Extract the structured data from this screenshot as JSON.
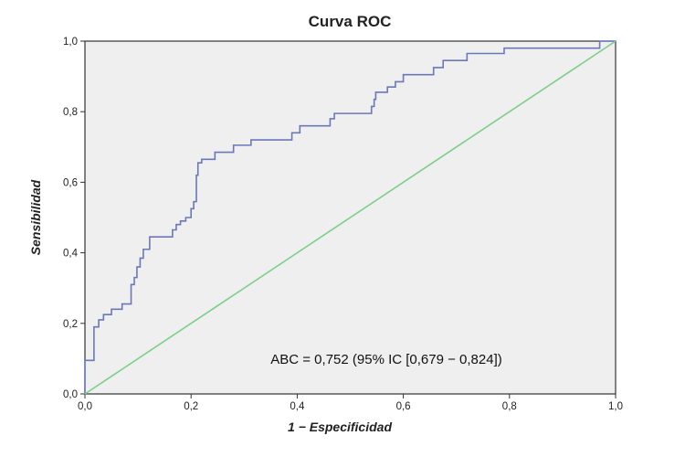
{
  "chart_data": {
    "type": "line",
    "title": "Curva ROC",
    "xlabel": "1 − Especificidad",
    "ylabel": "Sensibilidad",
    "xlim": [
      0,
      1
    ],
    "ylim": [
      0,
      1
    ],
    "x_ticks": [
      "0,0",
      "0,2",
      "0,4",
      "0,6",
      "0,8",
      "1,0"
    ],
    "y_ticks": [
      "0,0",
      "0,2",
      "0,4",
      "0,6",
      "0,8",
      "1,0"
    ],
    "annotation": "ABC = 0,752 (95% IC [0,679 − 0,824])",
    "grid": false,
    "plot_background": "#efefef",
    "series": [
      {
        "color": "#6b78b8",
        "points": [
          [
            0.0,
            0.0
          ],
          [
            0.0,
            0.095
          ],
          [
            0.017,
            0.095
          ],
          [
            0.017,
            0.19
          ],
          [
            0.026,
            0.19
          ],
          [
            0.026,
            0.21
          ],
          [
            0.035,
            0.21
          ],
          [
            0.035,
            0.225
          ],
          [
            0.05,
            0.225
          ],
          [
            0.05,
            0.24
          ],
          [
            0.07,
            0.24
          ],
          [
            0.07,
            0.255
          ],
          [
            0.087,
            0.255
          ],
          [
            0.087,
            0.31
          ],
          [
            0.093,
            0.31
          ],
          [
            0.093,
            0.33
          ],
          [
            0.098,
            0.33
          ],
          [
            0.098,
            0.36
          ],
          [
            0.104,
            0.36
          ],
          [
            0.104,
            0.385
          ],
          [
            0.11,
            0.385
          ],
          [
            0.11,
            0.41
          ],
          [
            0.122,
            0.41
          ],
          [
            0.122,
            0.445
          ],
          [
            0.165,
            0.445
          ],
          [
            0.165,
            0.465
          ],
          [
            0.172,
            0.465
          ],
          [
            0.172,
            0.48
          ],
          [
            0.18,
            0.48
          ],
          [
            0.18,
            0.49
          ],
          [
            0.19,
            0.49
          ],
          [
            0.19,
            0.5
          ],
          [
            0.2,
            0.5
          ],
          [
            0.2,
            0.525
          ],
          [
            0.205,
            0.525
          ],
          [
            0.205,
            0.545
          ],
          [
            0.21,
            0.545
          ],
          [
            0.21,
            0.62
          ],
          [
            0.213,
            0.62
          ],
          [
            0.213,
            0.655
          ],
          [
            0.22,
            0.655
          ],
          [
            0.22,
            0.665
          ],
          [
            0.245,
            0.665
          ],
          [
            0.245,
            0.685
          ],
          [
            0.28,
            0.685
          ],
          [
            0.28,
            0.705
          ],
          [
            0.313,
            0.705
          ],
          [
            0.313,
            0.72
          ],
          [
            0.39,
            0.72
          ],
          [
            0.39,
            0.74
          ],
          [
            0.405,
            0.74
          ],
          [
            0.405,
            0.76
          ],
          [
            0.462,
            0.76
          ],
          [
            0.462,
            0.78
          ],
          [
            0.47,
            0.78
          ],
          [
            0.47,
            0.795
          ],
          [
            0.54,
            0.795
          ],
          [
            0.54,
            0.815
          ],
          [
            0.545,
            0.815
          ],
          [
            0.545,
            0.835
          ],
          [
            0.548,
            0.835
          ],
          [
            0.548,
            0.855
          ],
          [
            0.57,
            0.855
          ],
          [
            0.57,
            0.87
          ],
          [
            0.585,
            0.87
          ],
          [
            0.585,
            0.885
          ],
          [
            0.6,
            0.885
          ],
          [
            0.6,
            0.905
          ],
          [
            0.657,
            0.905
          ],
          [
            0.657,
            0.925
          ],
          [
            0.675,
            0.925
          ],
          [
            0.675,
            0.945
          ],
          [
            0.72,
            0.945
          ],
          [
            0.72,
            0.965
          ],
          [
            0.79,
            0.965
          ],
          [
            0.79,
            0.98
          ],
          [
            0.97,
            0.98
          ],
          [
            0.97,
            1.0
          ],
          [
            1.0,
            1.0
          ]
        ]
      },
      {
        "color": "#7ccf8a",
        "points": [
          [
            0.0,
            0.0
          ],
          [
            1.0,
            1.0
          ]
        ]
      }
    ]
  }
}
